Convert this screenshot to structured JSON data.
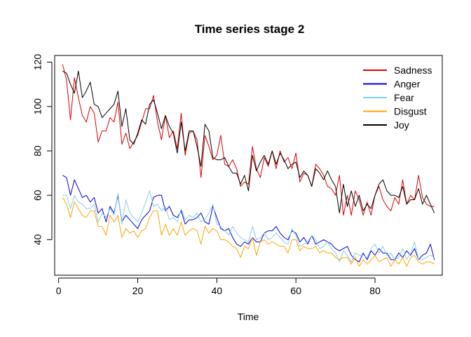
{
  "chart_data": {
    "type": "line",
    "title": "Time series stage 2",
    "xlabel": "Time",
    "ylabel": "",
    "xlim": [
      -1,
      97
    ],
    "ylim": [
      24,
      123
    ],
    "xticks": [
      0,
      20,
      40,
      60,
      80
    ],
    "yticks": [
      40,
      60,
      80,
      100,
      120
    ],
    "x_start": 1,
    "legend": {
      "position": "top-right"
    },
    "series": [
      {
        "name": "Sadness",
        "color": "#DD0000",
        "values": [
          119,
          112,
          94,
          113,
          104,
          96,
          93,
          100,
          97,
          84,
          89,
          89,
          95,
          93,
          102,
          83,
          88,
          81,
          84,
          87,
          93,
          99,
          99,
          105,
          93,
          85,
          96,
          86,
          89,
          81,
          97,
          78,
          88,
          89,
          85,
          68,
          87,
          82,
          76,
          78,
          87,
          74,
          73,
          76,
          72,
          64,
          66,
          65,
          82,
          72,
          68,
          77,
          73,
          80,
          72,
          80,
          75,
          77,
          72,
          79,
          66,
          70,
          69,
          64,
          74,
          72,
          69,
          64,
          63,
          60,
          69,
          51,
          60,
          51,
          62,
          58,
          51,
          57,
          51,
          60,
          64,
          58,
          55,
          53,
          59,
          56,
          67,
          56,
          60,
          58,
          69,
          59,
          56,
          55,
          55
        ]
      },
      {
        "name": "Anger",
        "color": "#0000DD",
        "values": [
          69,
          68,
          60,
          67,
          63,
          59,
          60,
          57,
          59,
          52,
          54,
          48,
          55,
          52,
          60,
          48,
          51,
          49,
          47,
          45,
          49,
          51,
          53,
          59,
          60,
          60,
          53,
          55,
          51,
          50,
          53,
          47,
          49,
          49,
          50,
          52,
          48,
          47,
          55,
          50,
          45,
          44,
          45,
          41,
          38,
          37,
          39,
          38,
          41,
          39,
          39,
          43,
          44,
          44,
          46,
          43,
          41,
          40,
          44,
          43,
          39,
          41,
          38,
          42,
          38,
          39,
          40,
          39,
          38,
          36,
          35,
          36,
          37,
          33,
          31,
          30,
          34,
          31,
          35,
          33,
          36,
          34,
          34,
          31,
          31,
          34,
          32,
          35,
          33,
          36,
          31,
          33,
          34,
          38,
          31
        ]
      },
      {
        "name": "Fear",
        "color": "#87CEEB",
        "values": [
          60,
          60,
          54,
          60,
          57,
          56,
          54,
          54,
          56,
          48,
          52,
          50,
          54,
          51,
          61,
          47,
          58,
          52,
          50,
          48,
          52,
          57,
          62,
          55,
          56,
          53,
          55,
          49,
          50,
          48,
          54,
          49,
          51,
          50,
          52,
          48,
          49,
          52,
          56,
          47,
          46,
          44,
          42,
          46,
          43,
          41,
          40,
          39,
          46,
          40,
          41,
          43,
          40,
          41,
          43,
          41,
          39,
          38,
          45,
          42,
          37,
          38,
          39,
          42,
          40,
          36,
          37,
          39,
          36,
          34,
          30,
          35,
          33,
          30,
          34,
          33,
          33,
          32,
          36,
          38,
          34,
          37,
          33,
          34,
          31,
          32,
          36,
          31,
          34,
          39,
          31,
          31,
          32,
          33,
          32
        ]
      },
      {
        "name": "Disgust",
        "color": "#FFA500",
        "values": [
          59,
          56,
          50,
          57,
          54,
          51,
          50,
          53,
          53,
          46,
          46,
          42,
          51,
          48,
          51,
          41,
          45,
          43,
          44,
          41,
          44,
          45,
          50,
          53,
          53,
          42,
          47,
          42,
          45,
          42,
          48,
          42,
          44,
          45,
          44,
          38,
          46,
          43,
          45,
          44,
          40,
          40,
          39,
          37,
          36,
          32,
          37,
          36,
          41,
          33,
          39,
          40,
          38,
          39,
          38,
          37,
          37,
          34,
          40,
          40,
          35,
          37,
          36,
          36,
          37,
          34,
          35,
          34,
          34,
          32,
          31,
          32,
          32,
          29,
          32,
          28,
          31,
          29,
          31,
          33,
          30,
          31,
          32,
          28,
          31,
          29,
          32,
          28,
          32,
          33,
          30,
          29,
          30,
          30,
          29
        ]
      },
      {
        "name": "Joy",
        "color": "#000000",
        "values": [
          116,
          115,
          110,
          106,
          116,
          104,
          107,
          111,
          101,
          100,
          95,
          97,
          99,
          101,
          107,
          91,
          99,
          85,
          83,
          88,
          94,
          92,
          101,
          103,
          97,
          90,
          96,
          91,
          88,
          79,
          93,
          80,
          89,
          89,
          82,
          73,
          92,
          89,
          77,
          76,
          76,
          77,
          73,
          70,
          70,
          65,
          69,
          62,
          78,
          71,
          75,
          78,
          74,
          80,
          74,
          79,
          76,
          72,
          74,
          75,
          68,
          71,
          69,
          64,
          72,
          70,
          67,
          71,
          67,
          64,
          52,
          65,
          55,
          62,
          55,
          60,
          53,
          56,
          54,
          60,
          65,
          67,
          62,
          60,
          60,
          59,
          64,
          56,
          58,
          58,
          63,
          56,
          60,
          56,
          52
        ]
      }
    ]
  }
}
